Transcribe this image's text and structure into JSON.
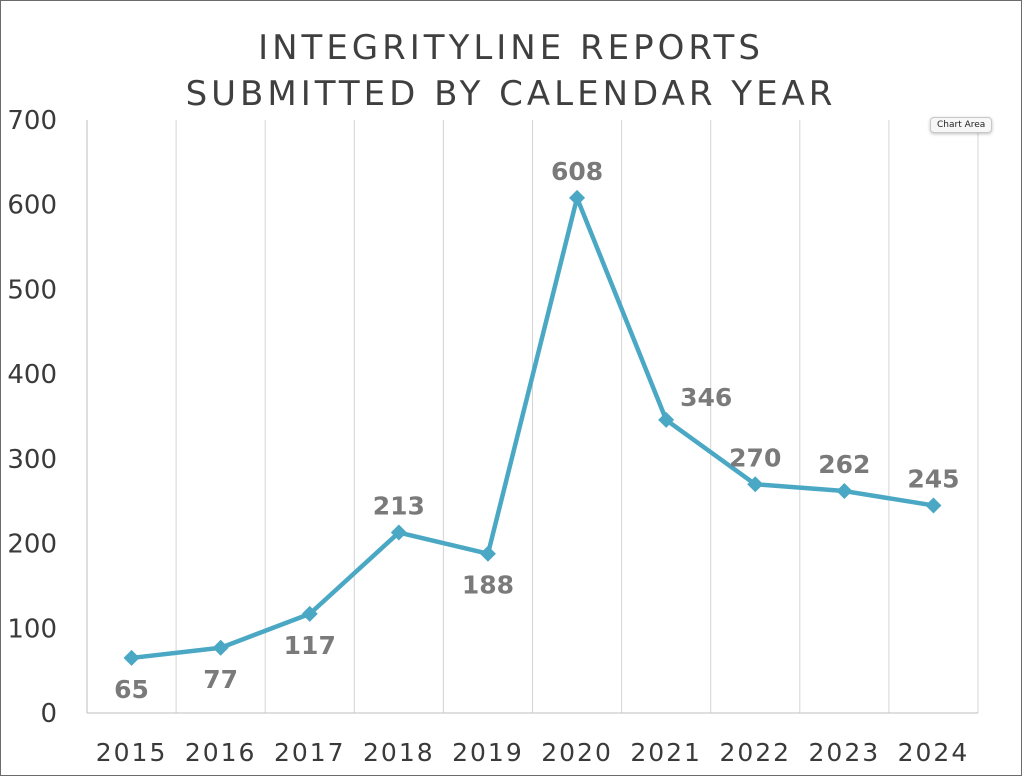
{
  "tooltip": {
    "label": "Chart Area"
  },
  "chart_data": {
    "type": "line",
    "title_lines": [
      "INTEGRITYLINE REPORTS",
      "SUBMITTED BY CALENDAR YEAR"
    ],
    "xlabel": "",
    "ylabel": "",
    "categories": [
      "2015",
      "2016",
      "2017",
      "2018",
      "2019",
      "2020",
      "2021",
      "2022",
      "2023",
      "2024"
    ],
    "series": [
      {
        "values": [
          65,
          77,
          117,
          213,
          188,
          608,
          346,
          270,
          262,
          245
        ]
      }
    ],
    "data_labels": [
      "65",
      "77",
      "117",
      "213",
      "188",
      "608",
      "346",
      "270",
      "262",
      "245"
    ],
    "ylim": [
      0,
      700
    ],
    "y_ticks": [
      0,
      100,
      200,
      300,
      400,
      500,
      600,
      700
    ],
    "y_tick_labels": [
      "0",
      "100",
      "200",
      "300",
      "400",
      "500",
      "600",
      "700"
    ],
    "grid": "vertical",
    "marker": "diamond",
    "legend": "none",
    "line_color": "#4aa8c4",
    "grid_color": "#d4d4d4",
    "axis_color": "#bfbfbf",
    "label_color": "#7a7a7a"
  }
}
